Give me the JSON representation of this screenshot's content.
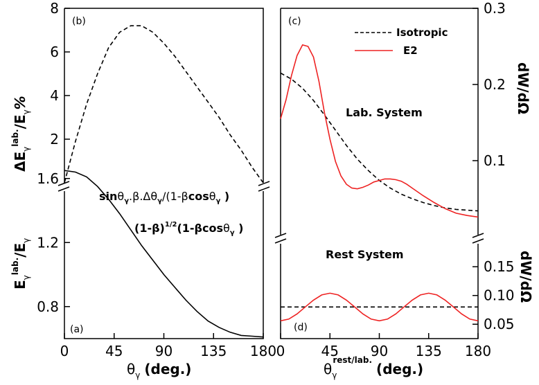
{
  "chart_data": [
    {
      "panel": "(b)",
      "type": "line",
      "ylabel": "ΔE_γ^lab./E_γ %",
      "xlim": [
        0,
        180
      ],
      "ylim": [
        0,
        8
      ],
      "yticks": [
        "2",
        "4",
        "6",
        "8"
      ],
      "annotation": "sinθ_γ.β.Δθ_γ/(1-βcosθ_γ)",
      "series": [
        {
          "style": "dashed",
          "color": "#000000",
          "x": [
            0,
            10,
            20,
            30,
            40,
            50,
            60,
            70,
            80,
            90,
            100,
            110,
            120,
            130,
            140,
            150,
            160,
            170,
            180
          ],
          "y": [
            0,
            1.9,
            3.6,
            5.0,
            6.2,
            6.9,
            7.2,
            7.2,
            6.9,
            6.4,
            5.8,
            5.1,
            4.4,
            3.7,
            3.0,
            2.2,
            1.5,
            0.7,
            0
          ]
        }
      ]
    },
    {
      "panel": "(a)",
      "type": "line",
      "xlabel": "θ_γ (deg.)",
      "ylabel": "E_γ^lab./E_γ",
      "xlim": [
        0,
        180
      ],
      "ylim": [
        0.6,
        1.75
      ],
      "xticks": [
        "0",
        "45",
        "90",
        "135",
        "180"
      ],
      "yticks": [
        "0.8",
        "1.2",
        "1.6"
      ],
      "annotation": "(1-β)^1/2(1-βcosθ_γ)",
      "series": [
        {
          "style": "solid",
          "color": "#000000",
          "x": [
            0,
            10,
            20,
            30,
            40,
            50,
            60,
            70,
            80,
            90,
            100,
            110,
            120,
            130,
            140,
            150,
            160,
            170,
            180
          ],
          "y": [
            1.65,
            1.64,
            1.61,
            1.55,
            1.47,
            1.38,
            1.28,
            1.18,
            1.09,
            1.0,
            0.92,
            0.84,
            0.77,
            0.71,
            0.67,
            0.64,
            0.62,
            0.615,
            0.61
          ]
        }
      ]
    },
    {
      "panel": "(c)",
      "type": "line",
      "ylabel": "dW/dΩ",
      "xlim": [
        0,
        180
      ],
      "ylim": [
        0.02,
        0.3
      ],
      "yticks": [
        "0.1",
        "0.2",
        "0.3"
      ],
      "annotation": "Lab. System",
      "legend": [
        "Isotropic",
        "E2"
      ],
      "series": [
        {
          "name": "Isotropic",
          "style": "dashed",
          "color": "#000000",
          "x": [
            0,
            10,
            20,
            30,
            40,
            50,
            60,
            70,
            80,
            90,
            100,
            110,
            120,
            130,
            140,
            150,
            160,
            170,
            180
          ],
          "y": [
            0.215,
            0.207,
            0.195,
            0.179,
            0.16,
            0.14,
            0.12,
            0.102,
            0.087,
            0.074,
            0.064,
            0.056,
            0.05,
            0.045,
            0.041,
            0.038,
            0.036,
            0.035,
            0.034
          ]
        },
        {
          "name": "E2",
          "style": "solid",
          "color": "#ee2222",
          "x": [
            0,
            5,
            10,
            15,
            20,
            25,
            30,
            35,
            40,
            45,
            50,
            55,
            60,
            65,
            70,
            75,
            80,
            85,
            90,
            95,
            100,
            105,
            110,
            115,
            120,
            130,
            140,
            150,
            160,
            170,
            180
          ],
          "y": [
            0.155,
            0.18,
            0.212,
            0.238,
            0.252,
            0.25,
            0.236,
            0.204,
            0.163,
            0.128,
            0.099,
            0.08,
            0.069,
            0.064,
            0.063,
            0.065,
            0.068,
            0.072,
            0.074,
            0.076,
            0.076,
            0.075,
            0.073,
            0.069,
            0.064,
            0.054,
            0.045,
            0.037,
            0.031,
            0.028,
            0.026
          ]
        }
      ]
    },
    {
      "panel": "(d)",
      "type": "line",
      "xlabel": "θ_γ^rest/lab. (deg.)",
      "ylabel": "dW/dΩ",
      "xlim": [
        0,
        180
      ],
      "ylim": [
        0.02,
        0.19
      ],
      "xticks": [
        "0",
        "45",
        "90",
        "135",
        "180"
      ],
      "yticks": [
        "0.05",
        "0.10",
        "0.15"
      ],
      "annotation": "Rest System",
      "series": [
        {
          "name": "Isotropic",
          "style": "dashed",
          "color": "#000000",
          "x": [
            0,
            180
          ],
          "y": [
            0.08,
            0.08
          ]
        },
        {
          "name": "E2",
          "style": "solid",
          "color": "#ee2222",
          "x": [
            0,
            7.5,
            15,
            22.5,
            30,
            37.5,
            45,
            52.5,
            60,
            67.5,
            75,
            82.5,
            90,
            97.5,
            105,
            112.5,
            120,
            127.5,
            135,
            142.5,
            150,
            157.5,
            165,
            172.5,
            180
          ],
          "y": [
            0.056,
            0.059,
            0.068,
            0.08,
            0.092,
            0.101,
            0.104,
            0.101,
            0.092,
            0.08,
            0.068,
            0.059,
            0.056,
            0.059,
            0.068,
            0.08,
            0.092,
            0.101,
            0.104,
            0.101,
            0.092,
            0.08,
            0.068,
            0.059,
            0.056
          ]
        }
      ]
    }
  ],
  "labels": {
    "b_panel": "(b)",
    "a_panel": "(a)",
    "c_panel": "(c)",
    "d_panel": "(d)",
    "left_top_ylabel_main": "ΔE",
    "left_top_ylabel_sub": "γ",
    "left_top_ylabel_sup": "lab.",
    "left_top_ylabel_tail": "/E",
    "left_top_ylabel_sub2": "γ",
    "left_top_ylabel_pct": "%",
    "left_bot_ylabel_main": "E",
    "left_bot_ylabel_sub": "γ",
    "left_bot_ylabel_sup": "lab.",
    "left_bot_ylabel_tail": "/E",
    "left_bot_ylabel_sub2": "γ",
    "right_top_ylabel": "dW/dΩ",
    "right_bot_ylabel": "dW/dΩ",
    "left_xlabel_theta": "θ",
    "left_xlabel_sub": "γ",
    "left_xlabel_unit": "(deg.)",
    "right_xlabel_theta": "θ",
    "right_xlabel_sub": "γ",
    "right_xlabel_sup": "rest/lab.",
    "right_xlabel_unit": "(deg.)",
    "ann_b": {
      "p1": "sin",
      "p2": "θ",
      "p3": "γ",
      "p4": ".β.Δθ",
      "p5": "γ",
      "p6": "/(1-β",
      "p7": "cos",
      "p8": "θ",
      "p9": "γ",
      "p10": " )"
    },
    "ann_a": {
      "p1": "(1-β)",
      "p2": "1/2",
      "p3": "(1-β",
      "p4": "cos",
      "p5": "θ",
      "p6": "γ",
      "p7": " )"
    },
    "ann_c": "Lab. System",
    "ann_d": "Rest System",
    "legend_iso": "Isotropic",
    "legend_e2": "E2"
  }
}
